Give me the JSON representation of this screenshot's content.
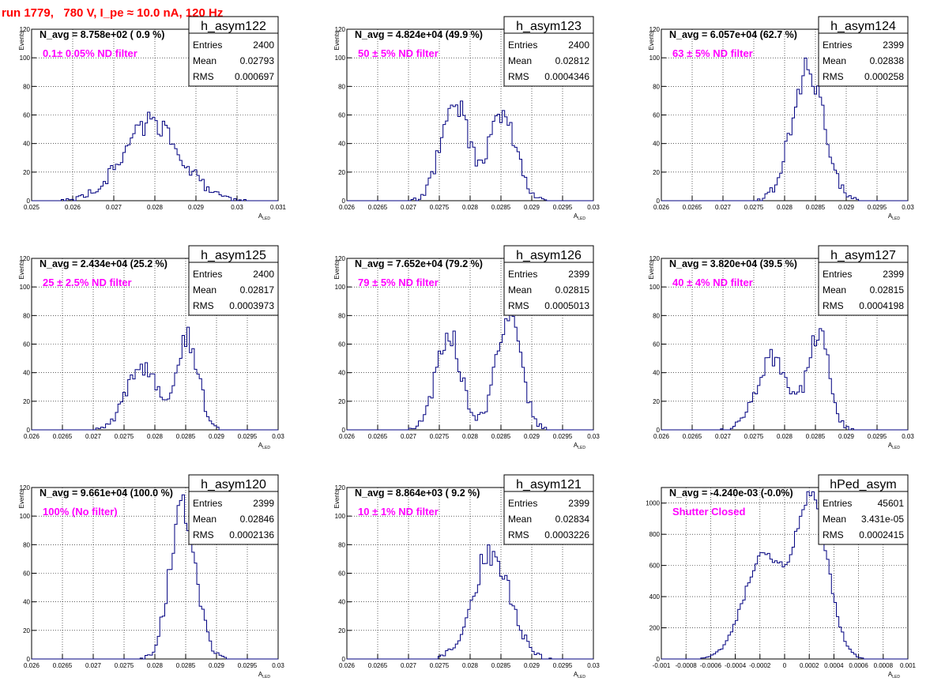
{
  "page_title": "run 1779,   780 V, I_pe ≈ 10.0 nA, 120 Hz",
  "colors": {
    "histogram": "#000080",
    "annotation": "#ff00ff",
    "title": "#ff0000"
  },
  "chart_data": [
    {
      "type": "bar",
      "name": "h_asym122",
      "stats": {
        "entries_label": "Entries",
        "entries": "2400",
        "mean_label": "Mean",
        "mean": "0.02793",
        "rms_label": "RMS",
        "rms": "0.000697"
      },
      "navg_text": "N_avg = 8.758e+02 ( 0.9 %)",
      "note": "0.1± 0.05% ND filter",
      "xlabel": "A_LED",
      "ylabel": "Events",
      "xlim": [
        0.025,
        0.031
      ],
      "ylim": [
        0,
        120
      ],
      "xticks": [
        0.025,
        0.026,
        0.027,
        0.028,
        0.029,
        0.03,
        0.031
      ],
      "xtick_labels": [
        "0.025",
        "0.026",
        "0.027",
        "0.028",
        "0.029",
        "0.03",
        "0.031"
      ],
      "yticks": [
        0,
        20,
        40,
        60,
        80,
        100,
        120
      ],
      "ytick_labels": [
        "0",
        "20",
        "40",
        "60",
        "80",
        "100",
        "120"
      ],
      "peaks": [
        {
          "mu": 0.02793,
          "sigma": 0.0007,
          "amp": 55
        }
      ],
      "seed": 122
    },
    {
      "type": "bar",
      "name": "h_asym123",
      "stats": {
        "entries_label": "Entries",
        "entries": "2400",
        "mean_label": "Mean",
        "mean": "0.02812",
        "rms_label": "RMS",
        "rms": "0.0004346"
      },
      "navg_text": "N_avg = 4.824e+04 (49.9 %)",
      "note": "50 ± 5% ND filter",
      "xlabel": "A_LED",
      "ylabel": "Events",
      "xlim": [
        0.026,
        0.03
      ],
      "ylim": [
        0,
        120
      ],
      "xticks": [
        0.026,
        0.0265,
        0.027,
        0.0275,
        0.028,
        0.0285,
        0.029,
        0.0295,
        0.03
      ],
      "xtick_labels": [
        "0.026",
        "0.0265",
        "0.027",
        "0.0275",
        "0.028",
        "0.0285",
        "0.029",
        "0.0295",
        "0.03"
      ],
      "yticks": [
        0,
        20,
        40,
        60,
        80,
        100,
        120
      ],
      "ytick_labels": [
        "0",
        "20",
        "40",
        "60",
        "80",
        "100",
        "120"
      ],
      "peaks": [
        {
          "mu": 0.02775,
          "sigma": 0.00022,
          "amp": 70
        },
        {
          "mu": 0.02853,
          "sigma": 0.00022,
          "amp": 62
        }
      ],
      "seed": 123
    },
    {
      "type": "bar",
      "name": "h_asym124",
      "stats": {
        "entries_label": "Entries",
        "entries": "2399",
        "mean_label": "Mean",
        "mean": "0.02838",
        "rms_label": "RMS",
        "rms": "0.000258"
      },
      "navg_text": "N_avg = 6.057e+04 (62.7 %)",
      "note": "63 ± 5% ND filter",
      "xlabel": "A_LED",
      "ylabel": "Events",
      "xlim": [
        0.026,
        0.03
      ],
      "ylim": [
        0,
        120
      ],
      "xticks": [
        0.026,
        0.0265,
        0.027,
        0.0275,
        0.028,
        0.0285,
        0.029,
        0.0295,
        0.03
      ],
      "xtick_labels": [
        "0.026",
        "0.0265",
        "0.027",
        "0.0275",
        "0.028",
        "0.0285",
        "0.029",
        "0.0295",
        "0.03"
      ],
      "yticks": [
        0,
        20,
        40,
        60,
        80,
        100,
        120
      ],
      "ytick_labels": [
        "0",
        "20",
        "40",
        "60",
        "80",
        "100",
        "120"
      ],
      "peaks": [
        {
          "mu": 0.02838,
          "sigma": 0.00026,
          "amp": 92
        }
      ],
      "seed": 124
    },
    {
      "type": "bar",
      "name": "h_asym125",
      "stats": {
        "entries_label": "Entries",
        "entries": "2400",
        "mean_label": "Mean",
        "mean": "0.02817",
        "rms_label": "RMS",
        "rms": "0.0003973"
      },
      "navg_text": "N_avg = 2.434e+04 (25.2 %)",
      "note": "25 ± 2.5% ND filter",
      "xlabel": "A_LED",
      "ylabel": "Events",
      "xlim": [
        0.026,
        0.03
      ],
      "ylim": [
        0,
        120
      ],
      "xticks": [
        0.026,
        0.0265,
        0.027,
        0.0275,
        0.028,
        0.0285,
        0.029,
        0.0295,
        0.03
      ],
      "xtick_labels": [
        "0.026",
        "0.0265",
        "0.027",
        "0.0275",
        "0.028",
        "0.0285",
        "0.029",
        "0.0295",
        "0.03"
      ],
      "yticks": [
        0,
        20,
        40,
        60,
        80,
        100,
        120
      ],
      "ytick_labels": [
        "0",
        "20",
        "40",
        "60",
        "80",
        "100",
        "120"
      ],
      "peaks": [
        {
          "mu": 0.0278,
          "sigma": 0.00025,
          "amp": 45
        },
        {
          "mu": 0.02852,
          "sigma": 0.00018,
          "amp": 65
        }
      ],
      "seed": 125
    },
    {
      "type": "bar",
      "name": "h_asym126",
      "stats": {
        "entries_label": "Entries",
        "entries": "2399",
        "mean_label": "Mean",
        "mean": "0.02815",
        "rms_label": "RMS",
        "rms": "0.0005013"
      },
      "navg_text": "N_avg = 7.652e+04 (79.2 %)",
      "note": "79 ± 5% ND filter",
      "xlabel": "A_LED",
      "ylabel": "Events",
      "xlim": [
        0.026,
        0.03
      ],
      "ylim": [
        0,
        120
      ],
      "xticks": [
        0.026,
        0.0265,
        0.027,
        0.0275,
        0.028,
        0.0285,
        0.029,
        0.0295,
        0.03
      ],
      "xtick_labels": [
        "0.026",
        "0.0265",
        "0.027",
        "0.0275",
        "0.028",
        "0.0285",
        "0.029",
        "0.0295",
        "0.03"
      ],
      "yticks": [
        0,
        20,
        40,
        60,
        80,
        100,
        120
      ],
      "ytick_labels": [
        "0",
        "20",
        "40",
        "60",
        "80",
        "100",
        "120"
      ],
      "peaks": [
        {
          "mu": 0.02765,
          "sigma": 0.0002,
          "amp": 68
        },
        {
          "mu": 0.02862,
          "sigma": 0.0002,
          "amp": 82
        }
      ],
      "seed": 126
    },
    {
      "type": "bar",
      "name": "h_asym127",
      "stats": {
        "entries_label": "Entries",
        "entries": "2399",
        "mean_label": "Mean",
        "mean": "0.02815",
        "rms_label": "RMS",
        "rms": "0.0004198"
      },
      "navg_text": "N_avg = 3.820e+04 (39.5 %)",
      "note": "40 ± 4% ND filter",
      "xlabel": "A_LED",
      "ylabel": "Events",
      "xlim": [
        0.026,
        0.03
      ],
      "ylim": [
        0,
        120
      ],
      "xticks": [
        0.026,
        0.0265,
        0.027,
        0.0275,
        0.028,
        0.0285,
        0.029,
        0.0295,
        0.03
      ],
      "xtick_labels": [
        "0.026",
        "0.0265",
        "0.027",
        "0.0275",
        "0.028",
        "0.0285",
        "0.029",
        "0.0295",
        "0.03"
      ],
      "yticks": [
        0,
        20,
        40,
        60,
        80,
        100,
        120
      ],
      "ytick_labels": [
        "0",
        "20",
        "40",
        "60",
        "80",
        "100",
        "120"
      ],
      "peaks": [
        {
          "mu": 0.0278,
          "sigma": 0.00025,
          "amp": 52
        },
        {
          "mu": 0.02855,
          "sigma": 0.00017,
          "amp": 68
        }
      ],
      "seed": 127
    },
    {
      "type": "bar",
      "name": "h_asym120",
      "stats": {
        "entries_label": "Entries",
        "entries": "2399",
        "mean_label": "Mean",
        "mean": "0.02846",
        "rms_label": "RMS",
        "rms": "0.0002136"
      },
      "navg_text": "N_avg = 9.661e+04 (100.0 %)",
      "note": "100% (No filter)",
      "xlabel": "A_LED",
      "ylabel": "Events",
      "xlim": [
        0.026,
        0.03
      ],
      "ylim": [
        0,
        120
      ],
      "xticks": [
        0.026,
        0.0265,
        0.027,
        0.0275,
        0.028,
        0.0285,
        0.029,
        0.0295,
        0.03
      ],
      "xtick_labels": [
        "0.026",
        "0.0265",
        "0.027",
        "0.0275",
        "0.028",
        "0.0285",
        "0.029",
        "0.0295",
        "0.03"
      ],
      "yticks": [
        0,
        20,
        40,
        60,
        80,
        100,
        120
      ],
      "ytick_labels": [
        "0",
        "20",
        "40",
        "60",
        "80",
        "100",
        "120"
      ],
      "peaks": [
        {
          "mu": 0.02846,
          "sigma": 0.00021,
          "amp": 106
        }
      ],
      "seed": 120
    },
    {
      "type": "bar",
      "name": "h_asym121",
      "stats": {
        "entries_label": "Entries",
        "entries": "2399",
        "mean_label": "Mean",
        "mean": "0.02834",
        "rms_label": "RMS",
        "rms": "0.0003226"
      },
      "navg_text": "N_avg = 8.864e+03 ( 9.2 %)",
      "note": "10 ± 1% ND filter",
      "xlabel": "A_LED",
      "ylabel": "Events",
      "xlim": [
        0.026,
        0.03
      ],
      "ylim": [
        0,
        120
      ],
      "xticks": [
        0.026,
        0.0265,
        0.027,
        0.0275,
        0.028,
        0.0285,
        0.029,
        0.0295,
        0.03
      ],
      "xtick_labels": [
        "0.026",
        "0.0265",
        "0.027",
        "0.0275",
        "0.028",
        "0.0285",
        "0.029",
        "0.0295",
        "0.03"
      ],
      "yticks": [
        0,
        20,
        40,
        60,
        80,
        100,
        120
      ],
      "ytick_labels": [
        "0",
        "20",
        "40",
        "60",
        "80",
        "100",
        "120"
      ],
      "peaks": [
        {
          "mu": 0.02834,
          "sigma": 0.0003,
          "amp": 75
        }
      ],
      "seed": 121
    },
    {
      "type": "bar",
      "name": "hPed_asym",
      "stats": {
        "entries_label": "Entries",
        "entries": "45601",
        "mean_label": "Mean",
        "mean": "3.431e-05",
        "rms_label": "RMS",
        "rms": "0.0002415"
      },
      "navg_text": "N_avg = -4.240e-03 (-0.0%)",
      "note": "Shutter Closed",
      "xlabel": "A_LED",
      "ylabel": "",
      "xlim": [
        -0.001,
        0.001
      ],
      "ylim": [
        0,
        1100
      ],
      "xticks": [
        -0.001,
        -0.0008,
        -0.0006,
        -0.0004,
        -0.0002,
        0,
        0.0002,
        0.0004,
        0.0006,
        0.0008,
        0.001
      ],
      "xtick_labels": [
        "-0.001",
        "-0.0008",
        "-0.0006",
        "-0.0004",
        "-0.0002",
        "0",
        "0.0002",
        "0.0004",
        "0.0006",
        "0.0008",
        "0.001"
      ],
      "yticks": [
        0,
        200,
        400,
        600,
        800,
        1000
      ],
      "ytick_labels": [
        "0",
        "200",
        "400",
        "600",
        "800",
        "1000"
      ],
      "peaks": [
        {
          "mu": -0.00017,
          "sigma": 0.00016,
          "amp": 650
        },
        {
          "mu": 0.00022,
          "sigma": 0.00013,
          "amp": 1010
        }
      ],
      "seed": 999
    }
  ]
}
